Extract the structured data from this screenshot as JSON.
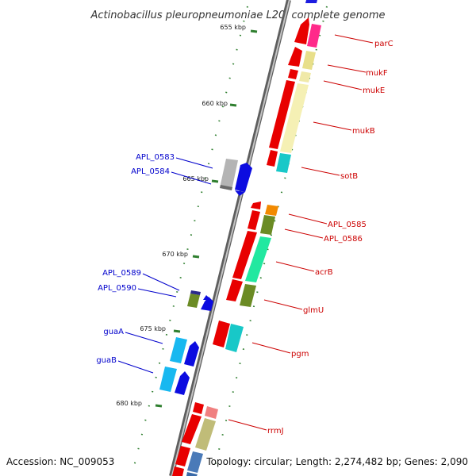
{
  "title": "Actinobacillus pleuropneumoniae L20, complete genome",
  "accession": "Accession: NC_009053",
  "topology": "Topology: circular; Length: 2,274,482 bp; Genes: 2,090",
  "colors": {
    "backbone": "#8c8c8c",
    "forward_label": "#cc0000",
    "reverse_label": "#0000cc",
    "tick": "#2f7f2f"
  },
  "ticks": [
    "655 kbp",
    "660 kbp",
    "665 kbp",
    "670 kbp",
    "675 kbp",
    "680 kbp"
  ],
  "forward_labels": [
    "parC",
    "mukF",
    "mukE",
    "mukB",
    "sotB",
    "APL_0585",
    "APL_0586",
    "acrB",
    "glmU",
    "pgm",
    "rrmJ"
  ],
  "reverse_labels": [
    "APL_0583",
    "APL_0584",
    "APL_0589",
    "APL_0590",
    "guaA",
    "guaB"
  ]
}
